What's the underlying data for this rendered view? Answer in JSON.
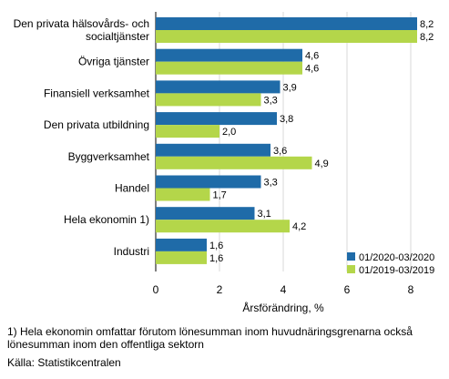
{
  "chart_data": {
    "type": "bar",
    "orientation": "horizontal",
    "categories": [
      [
        "Den privata hälsovårds- och",
        "socialtjänster"
      ],
      [
        "Övriga tjänster"
      ],
      [
        "Finansiell verksamhet"
      ],
      [
        "Den privata utbildning"
      ],
      [
        "Byggverksamhet"
      ],
      [
        "Handel"
      ],
      [
        "Hela ekonomin 1)"
      ],
      [
        "Industri"
      ]
    ],
    "series": [
      {
        "name": "01/2020-03/2020",
        "color": "#1f6ba8",
        "values": [
          8.2,
          4.6,
          3.9,
          3.8,
          3.6,
          3.3,
          3.1,
          1.6
        ],
        "labels": [
          "8,2",
          "4,6",
          "3,9",
          "3,8",
          "3,6",
          "3,3",
          "3,1",
          "1,6"
        ]
      },
      {
        "name": "01/2019-03/2019",
        "color": "#b4d64a",
        "values": [
          8.2,
          4.6,
          3.3,
          2.0,
          4.9,
          1.7,
          4.2,
          1.6
        ],
        "labels": [
          "8,2",
          "4,6",
          "3,3",
          "2,0",
          "4,9",
          "1,7",
          "4,2",
          "1,6"
        ]
      }
    ],
    "xlim": [
      0,
      9
    ],
    "xticks": [
      0,
      2,
      4,
      6,
      8
    ],
    "xtick_labels": [
      "0",
      "2",
      "4",
      "6",
      "8"
    ],
    "xlabel": "Årsförändring, %",
    "grid": "vertical",
    "legend": "bottom-right"
  },
  "footnote_1": "1) Hela ekonomin omfattar förutom lönesumman inom huvudnäringsgrenarna också",
  "footnote_2": "lönesumman inom den offentliga sektorn",
  "source": "Källa: Statistikcentralen"
}
